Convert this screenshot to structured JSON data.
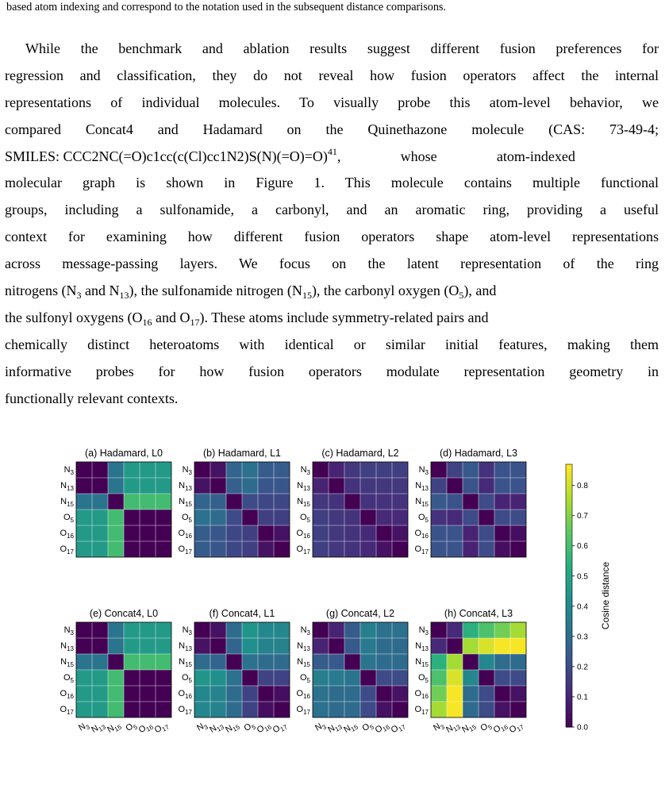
{
  "top_line": "based atom indexing and correspond to the notation used in the subsequent distance comparisons.",
  "paragraph_lines": [
    "While the benchmark and ablation results suggest different fusion preferences for",
    "regression and classification, they do not reveal how fusion operators affect the internal",
    "representations of individual molecules. To visually probe this atom-level behavior, we",
    "compared Concat4 and Hadamard on the Quinethazone molecule (CAS: 73-49-4;",
    "SMILES: CCC2NC(=O)c1cc(c(Cl)cc1N2)S(N)(=O)=O)",
    "molecular graph is shown in Figure 1. This molecule contains multiple functional",
    "groups, including a sulfonamide, a carbonyl, and an aromatic ring, providing a useful",
    "context for examining how different fusion operators shape atom-level representations",
    "across message-passing layers. We focus on the latent representation of the ring",
    "nitrogens (N",
    "the sulfonyl oxygens (O",
    "chemically distinct heteroatoms with identical or similar initial features, making them",
    "informative probes for how fusion operators modulate representation geometry in",
    "functionally relevant contexts."
  ],
  "smiles_tail": {
    "ref": "41",
    "rest": ", whose atom-indexed"
  },
  "nitrogen_line": {
    "s3": "3",
    "and": " and N",
    "s13": "13",
    "t1": "), the sulfonamide nitrogen (N",
    "s15": "15",
    "t2": "), the carbonyl oxygen (O",
    "s5": "5",
    "t3": "), and"
  },
  "oxygen_line": {
    "s16": "16",
    "and": " and O",
    "s17": "17",
    "t1": "). These atoms include symmetry-related pairs and"
  },
  "chart_data": {
    "type": "heatmap",
    "row_labels": [
      [
        "N",
        "3"
      ],
      [
        "N",
        "13"
      ],
      [
        "N",
        "15"
      ],
      [
        "O",
        "5"
      ],
      [
        "O",
        "16"
      ],
      [
        "O",
        "17"
      ]
    ],
    "col_labels": [
      [
        "N",
        "3"
      ],
      [
        "N",
        "13"
      ],
      [
        "N",
        "15"
      ],
      [
        "O",
        "5"
      ],
      [
        "O",
        "16"
      ],
      [
        "O",
        "17"
      ]
    ],
    "colorbar": {
      "label": "Cosine distance",
      "min": 0.0,
      "max": 0.87,
      "ticks": [
        "0.0",
        "0.1",
        "0.2",
        "0.3",
        "0.4",
        "0.5",
        "0.6",
        "0.7",
        "0.8"
      ]
    },
    "panels": [
      {
        "title": "(a) Hadamard, L0",
        "values": [
          [
            0.0,
            0.0,
            0.33,
            0.47,
            0.47,
            0.47
          ],
          [
            0.0,
            0.0,
            0.33,
            0.47,
            0.47,
            0.47
          ],
          [
            0.33,
            0.33,
            0.0,
            0.6,
            0.6,
            0.6
          ],
          [
            0.47,
            0.47,
            0.6,
            0.0,
            0.0,
            0.0
          ],
          [
            0.47,
            0.47,
            0.6,
            0.0,
            0.0,
            0.0
          ],
          [
            0.47,
            0.47,
            0.6,
            0.0,
            0.0,
            0.0
          ]
        ]
      },
      {
        "title": "(b) Hadamard, L1",
        "values": [
          [
            0.0,
            0.05,
            0.28,
            0.32,
            0.25,
            0.25
          ],
          [
            0.05,
            0.0,
            0.26,
            0.3,
            0.23,
            0.23
          ],
          [
            0.28,
            0.26,
            0.0,
            0.2,
            0.19,
            0.19
          ],
          [
            0.32,
            0.3,
            0.2,
            0.0,
            0.17,
            0.17
          ],
          [
            0.25,
            0.23,
            0.19,
            0.17,
            0.0,
            0.05
          ],
          [
            0.25,
            0.23,
            0.19,
            0.17,
            0.05,
            0.0
          ]
        ]
      },
      {
        "title": "(c) Hadamard, L2",
        "values": [
          [
            0.0,
            0.1,
            0.15,
            0.17,
            0.17,
            0.17
          ],
          [
            0.1,
            0.0,
            0.14,
            0.15,
            0.15,
            0.15
          ],
          [
            0.15,
            0.14,
            0.0,
            0.14,
            0.14,
            0.14
          ],
          [
            0.17,
            0.15,
            0.14,
            0.0,
            0.12,
            0.12
          ],
          [
            0.17,
            0.15,
            0.14,
            0.12,
            0.0,
            0.05
          ],
          [
            0.17,
            0.15,
            0.14,
            0.12,
            0.05,
            0.0
          ]
        ]
      },
      {
        "title": "(d) Hadamard, L3",
        "values": [
          [
            0.0,
            0.18,
            0.24,
            0.14,
            0.22,
            0.22
          ],
          [
            0.18,
            0.0,
            0.22,
            0.12,
            0.22,
            0.22
          ],
          [
            0.24,
            0.22,
            0.0,
            0.2,
            0.1,
            0.1
          ],
          [
            0.14,
            0.12,
            0.2,
            0.0,
            0.2,
            0.2
          ],
          [
            0.22,
            0.22,
            0.1,
            0.2,
            0.0,
            0.04
          ],
          [
            0.22,
            0.22,
            0.1,
            0.2,
            0.04,
            0.0
          ]
        ]
      },
      {
        "title": "(e) Concat4, L0",
        "values": [
          [
            0.0,
            0.0,
            0.33,
            0.47,
            0.47,
            0.47
          ],
          [
            0.0,
            0.0,
            0.33,
            0.47,
            0.47,
            0.47
          ],
          [
            0.33,
            0.33,
            0.0,
            0.6,
            0.6,
            0.6
          ],
          [
            0.47,
            0.47,
            0.6,
            0.0,
            0.0,
            0.0
          ],
          [
            0.47,
            0.47,
            0.6,
            0.0,
            0.0,
            0.0
          ],
          [
            0.47,
            0.47,
            0.6,
            0.0,
            0.0,
            0.0
          ]
        ]
      },
      {
        "title": "(f) Concat4, L1",
        "values": [
          [
            0.0,
            0.05,
            0.3,
            0.45,
            0.4,
            0.4
          ],
          [
            0.05,
            0.0,
            0.28,
            0.43,
            0.38,
            0.38
          ],
          [
            0.3,
            0.28,
            0.0,
            0.32,
            0.3,
            0.3
          ],
          [
            0.45,
            0.43,
            0.32,
            0.0,
            0.18,
            0.18
          ],
          [
            0.4,
            0.38,
            0.3,
            0.18,
            0.0,
            0.04
          ],
          [
            0.4,
            0.38,
            0.3,
            0.18,
            0.04,
            0.0
          ]
        ]
      },
      {
        "title": "(g) Concat4, L2",
        "values": [
          [
            0.0,
            0.1,
            0.25,
            0.37,
            0.32,
            0.32
          ],
          [
            0.1,
            0.0,
            0.24,
            0.35,
            0.3,
            0.3
          ],
          [
            0.25,
            0.24,
            0.0,
            0.33,
            0.3,
            0.3
          ],
          [
            0.37,
            0.35,
            0.33,
            0.0,
            0.2,
            0.2
          ],
          [
            0.32,
            0.3,
            0.3,
            0.2,
            0.0,
            0.05
          ],
          [
            0.32,
            0.3,
            0.3,
            0.2,
            0.05,
            0.0
          ]
        ]
      },
      {
        "title": "(h) Concat4, L3",
        "values": [
          [
            0.0,
            0.12,
            0.55,
            0.62,
            0.68,
            0.75
          ],
          [
            0.12,
            0.0,
            0.75,
            0.82,
            0.86,
            0.86
          ],
          [
            0.55,
            0.75,
            0.0,
            0.4,
            0.3,
            0.3
          ],
          [
            0.62,
            0.82,
            0.4,
            0.0,
            0.2,
            0.2
          ],
          [
            0.68,
            0.86,
            0.3,
            0.2,
            0.0,
            0.05
          ],
          [
            0.75,
            0.86,
            0.3,
            0.2,
            0.05,
            0.0
          ]
        ]
      }
    ]
  }
}
